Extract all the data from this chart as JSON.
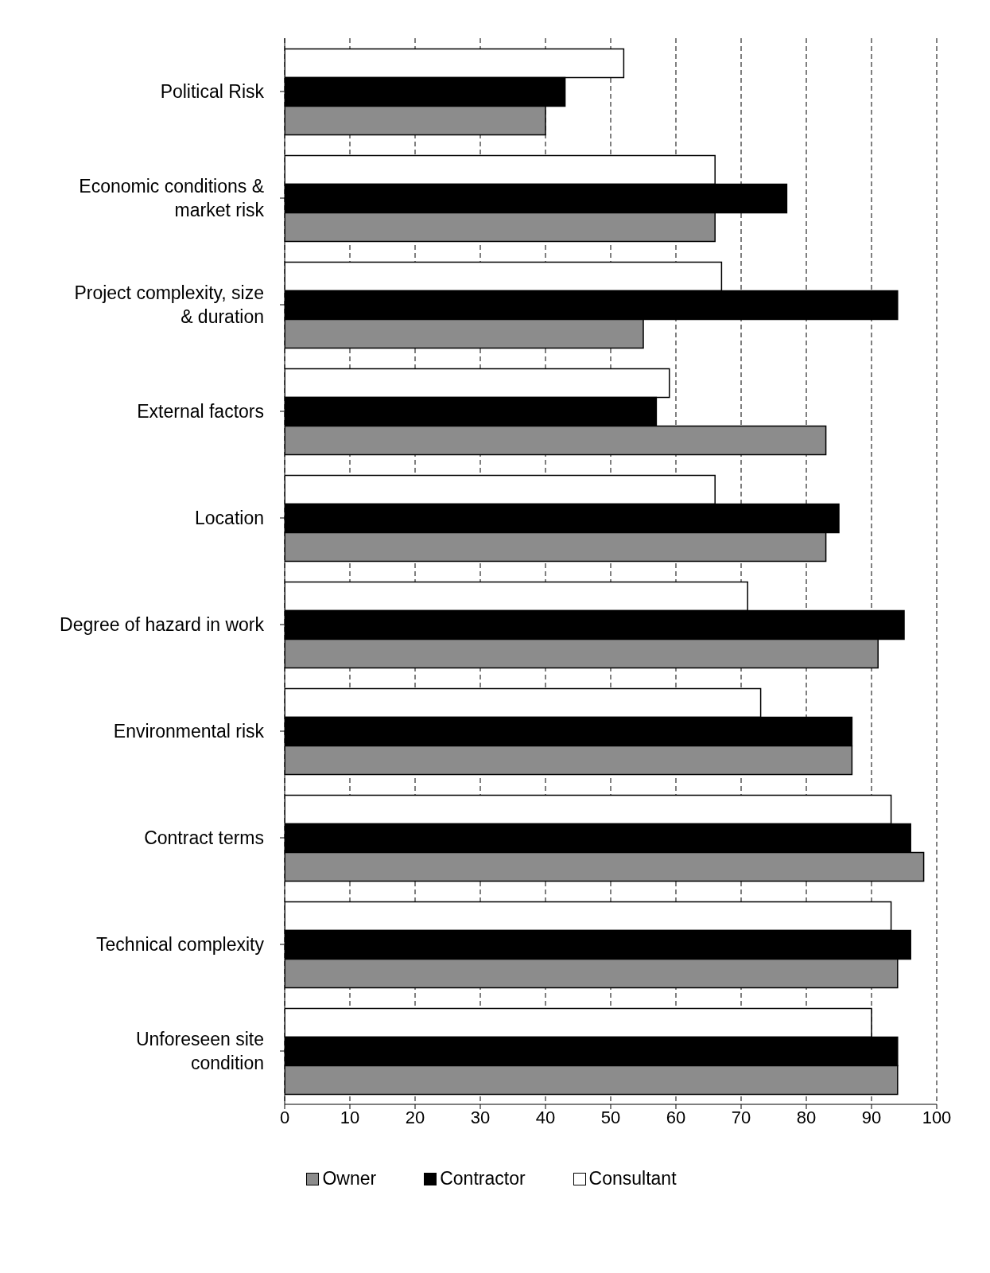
{
  "chart_data": {
    "type": "bar",
    "orientation": "horizontal",
    "categories": [
      "Political Risk",
      "Economic conditions & market risk",
      "Project complexity, size & duration",
      "External factors",
      "Location",
      "Degree of hazard in work",
      "Environmental risk",
      "Contract terms",
      "Technical complexity",
      "Unforeseen site condition"
    ],
    "series": [
      {
        "name": "Owner",
        "color": "#8c8c8c",
        "values": [
          40,
          66,
          55,
          83,
          83,
          91,
          87,
          98,
          94,
          94
        ]
      },
      {
        "name": "Contractor",
        "color": "#000000",
        "values": [
          43,
          77,
          94,
          57,
          85,
          95,
          87,
          96,
          96,
          94
        ]
      },
      {
        "name": "Consultant",
        "color": "#ffffff",
        "values": [
          52,
          66,
          67,
          59,
          66,
          71,
          73,
          93,
          93,
          90
        ]
      }
    ],
    "xlim": [
      0,
      100
    ],
    "xticks": [
      0,
      10,
      20,
      30,
      40,
      50,
      60,
      70,
      80,
      90,
      100
    ],
    "grid": "x",
    "legend": "bottom"
  }
}
